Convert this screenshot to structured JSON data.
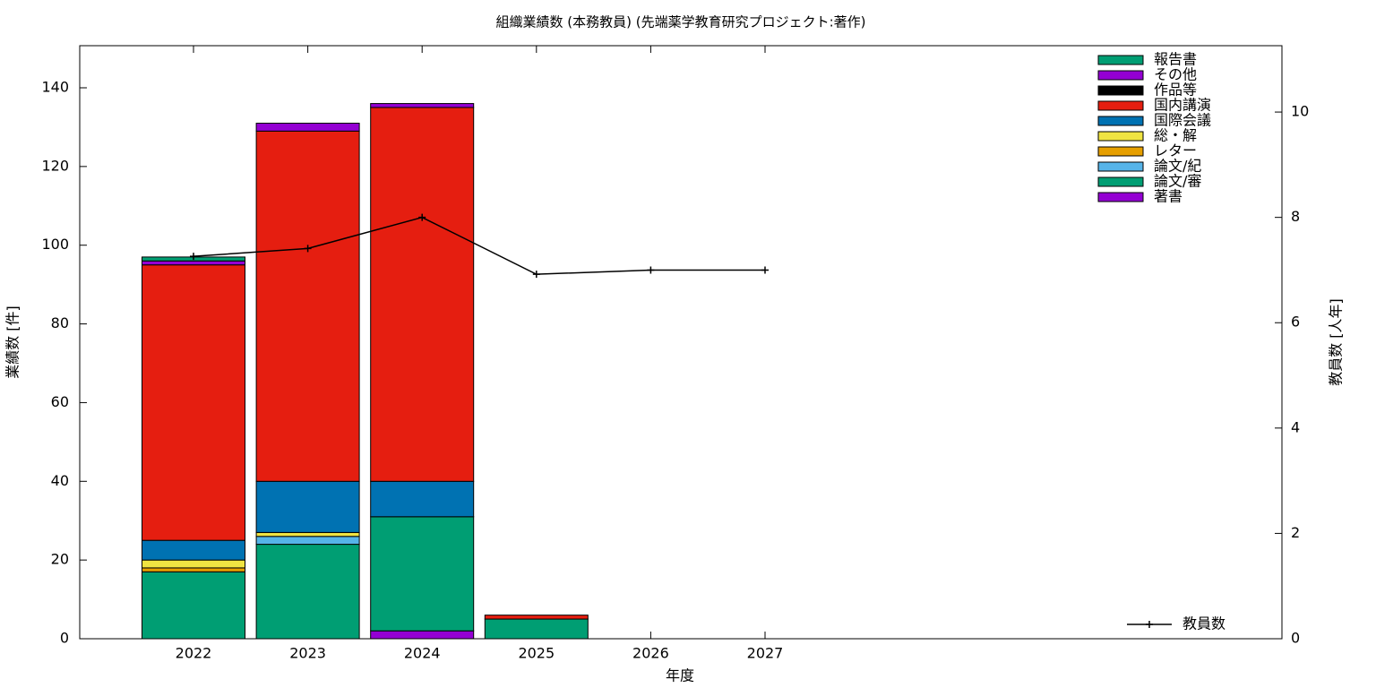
{
  "chart_data": {
    "type": "bar",
    "stacked": true,
    "title": "組織業績数 (本務教員) (先端薬学教育研究プロジェクト:著作)",
    "x_label": "年度",
    "y_label": "業績数 [件]",
    "y2_label": "教員数 [人年]",
    "categories": [
      "2022",
      "2023",
      "2024",
      "2025",
      "2026",
      "2027"
    ],
    "ylim": [
      0,
      150.7
    ],
    "yticks": [
      0,
      20,
      40,
      60,
      80,
      100,
      120,
      140
    ],
    "y2lim": [
      0,
      11.26
    ],
    "y2ticks": [
      0,
      2,
      4,
      6,
      8,
      10
    ],
    "grid": false,
    "legend": "top-right",
    "series": [
      {
        "name": "著書",
        "color": "#9400d3",
        "values": [
          0,
          0,
          2,
          0,
          0,
          0
        ]
      },
      {
        "name": "論文/審",
        "color": "#009e73",
        "values": [
          17,
          24,
          29,
          5,
          0,
          0
        ]
      },
      {
        "name": "論文/紀",
        "color": "#56b4e9",
        "values": [
          0,
          2,
          0,
          0,
          0,
          0
        ]
      },
      {
        "name": "レター",
        "color": "#e69f00",
        "values": [
          1,
          0,
          0,
          0,
          0,
          0
        ]
      },
      {
        "name": "総・解",
        "color": "#f0e442",
        "values": [
          2,
          1,
          0,
          0,
          0,
          0
        ]
      },
      {
        "name": "国際会議",
        "color": "#0072b2",
        "values": [
          5,
          13,
          9,
          0,
          0,
          0
        ]
      },
      {
        "name": "国内講演",
        "color": "#e51e10",
        "values": [
          70,
          89,
          95,
          1,
          0,
          0
        ]
      },
      {
        "name": "作品等",
        "color": "#000000",
        "values": [
          0,
          0,
          0,
          0,
          0,
          0
        ]
      },
      {
        "name": "その他",
        "color": "#9400d3",
        "values": [
          1,
          2,
          1,
          0,
          0,
          0
        ]
      },
      {
        "name": "報告書",
        "color": "#009e73",
        "values": [
          1,
          0,
          0,
          0,
          0,
          0
        ]
      },
      {
        "name": "教員数",
        "type": "line",
        "axis": "y2",
        "color": "#000000",
        "values": [
          7.26,
          7.41,
          8.0,
          6.92,
          7.0,
          7.0
        ]
      }
    ]
  }
}
